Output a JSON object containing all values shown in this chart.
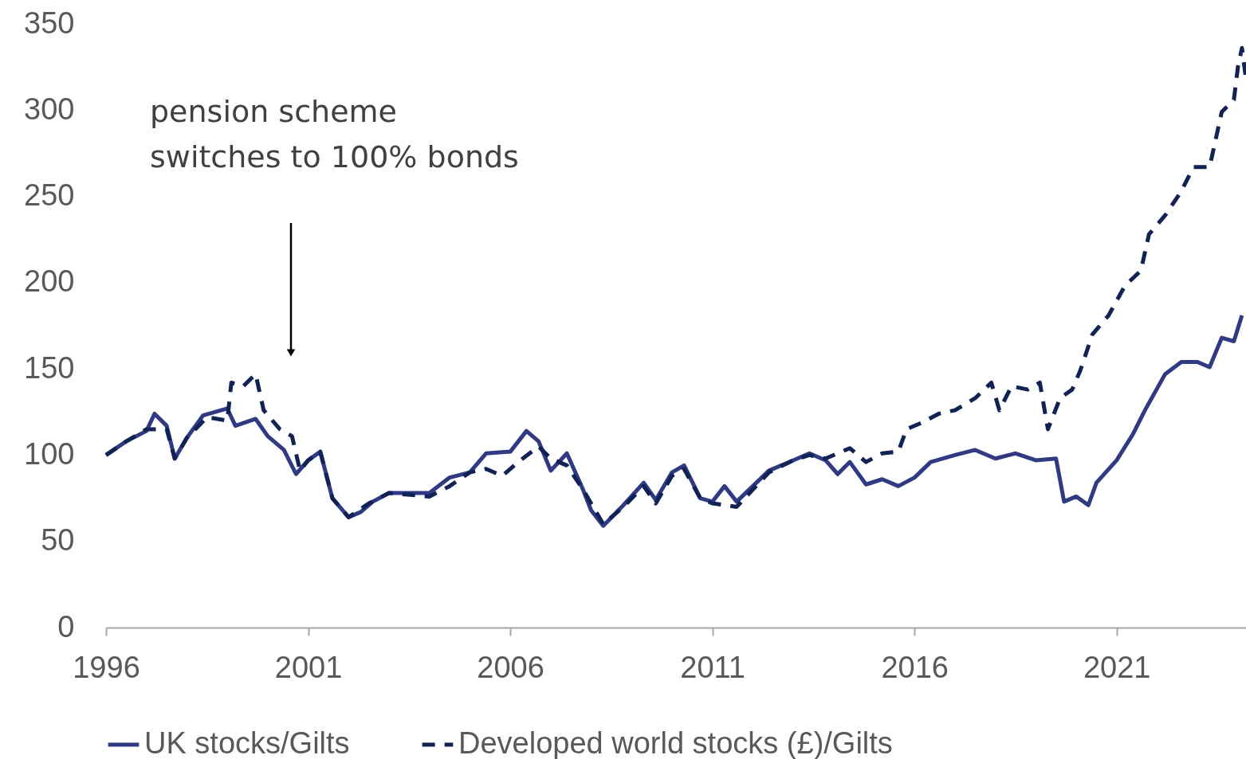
{
  "chart_data": {
    "type": "line",
    "xlim": [
      1996,
      2024.2
    ],
    "xticks": [
      1996,
      2001,
      2006,
      2011,
      2016,
      2021
    ],
    "ylim": [
      0,
      350
    ],
    "yticks": [
      0,
      50,
      100,
      150,
      200,
      250,
      300,
      350
    ],
    "grid": false,
    "legend": "bottom",
    "marker": "none",
    "annotations": [
      "pension scheme switches to 100% bonds"
    ],
    "series": [
      {
        "name": "UK stocks/Gilts",
        "color": "#2e3a87",
        "line_style": "solid",
        "x": [
          1996.0,
          1996.5,
          1997.0,
          1997.2,
          1997.5,
          1997.7,
          1998.0,
          1998.4,
          1999.0,
          1999.2,
          1999.7,
          2000.0,
          2000.4,
          2000.7,
          2001.0,
          2001.3,
          2001.6,
          2002.0,
          2002.3,
          2002.6,
          2003.0,
          2004.0,
          2004.5,
          2005.0,
          2005.4,
          2006.0,
          2006.4,
          2006.7,
          2007.0,
          2007.4,
          2007.8,
          2008.0,
          2008.3,
          2008.8,
          2009.3,
          2009.6,
          2010.0,
          2010.3,
          2010.7,
          2011.0,
          2011.3,
          2011.6,
          2012.0,
          2012.4,
          2013.0,
          2013.4,
          2013.8,
          2014.1,
          2014.4,
          2014.8,
          2015.2,
          2015.6,
          2016.0,
          2016.4,
          2017.0,
          2017.5,
          2018.0,
          2018.5,
          2019.0,
          2019.5,
          2019.7,
          2020.0,
          2020.3,
          2020.5,
          2021.0,
          2021.4,
          2021.7,
          2022.2,
          2022.6,
          2023.0,
          2023.3,
          2023.6,
          2023.9,
          2024.1
        ],
        "values": [
          100,
          108,
          114,
          124,
          117,
          98,
          110,
          123,
          127,
          117,
          121,
          111,
          103,
          89,
          97,
          102,
          75,
          64,
          67,
          73,
          78,
          78,
          87,
          90,
          101,
          102,
          114,
          108,
          91,
          101,
          80,
          68,
          59,
          71,
          84,
          74,
          90,
          94,
          75,
          73,
          82,
          73,
          82,
          91,
          97,
          101,
          97,
          89,
          96,
          83,
          86,
          82,
          87,
          96,
          100,
          103,
          98,
          101,
          97,
          98,
          73,
          76,
          71,
          84,
          97,
          112,
          126,
          147,
          154,
          154,
          151,
          168,
          166,
          181
        ]
      },
      {
        "name": "Developed world stocks (£)/Gilts",
        "color": "#0f2358",
        "line_style": "dashed",
        "x": [
          1996.0,
          1996.5,
          1997.0,
          1997.5,
          1997.7,
          1998.0,
          1998.5,
          1999.0,
          1999.1,
          1999.4,
          1999.7,
          1999.9,
          2000.3,
          2000.6,
          2000.8,
          2001.0,
          2001.3,
          2001.6,
          2002.0,
          2002.5,
          2003.0,
          2004.0,
          2004.5,
          2005.0,
          2005.4,
          2005.8,
          2006.2,
          2006.7,
          2007.0,
          2007.4,
          2007.8,
          2008.3,
          2008.8,
          2009.3,
          2009.6,
          2010.0,
          2010.3,
          2010.7,
          2011.0,
          2011.6,
          2012.4,
          2013.0,
          2013.4,
          2013.8,
          2014.4,
          2014.8,
          2015.2,
          2015.6,
          2015.8,
          2016.2,
          2016.6,
          2017.0,
          2017.5,
          2017.9,
          2018.1,
          2018.4,
          2018.8,
          2019.1,
          2019.3,
          2019.6,
          2019.9,
          2020.1,
          2020.4,
          2020.8,
          2021.2,
          2021.6,
          2021.8,
          2022.2,
          2022.6,
          2022.9,
          2023.3,
          2023.6,
          2023.9,
          2024.0,
          2024.1,
          2024.2
        ],
        "values": [
          100,
          108,
          115,
          115,
          98,
          110,
          122,
          120,
          142,
          140,
          147,
          126,
          115,
          111,
          91,
          97,
          102,
          75,
          64,
          72,
          78,
          76,
          82,
          90,
          92,
          88,
          96,
          105,
          98,
          94,
          80,
          60,
          70,
          82,
          72,
          88,
          92,
          75,
          72,
          70,
          90,
          97,
          100,
          98,
          104,
          96,
          101,
          102,
          115,
          119,
          124,
          126,
          133,
          142,
          126,
          140,
          138,
          142,
          115,
          133,
          138,
          149,
          170,
          181,
          198,
          207,
          228,
          239,
          253,
          267,
          267,
          299,
          306,
          325,
          336,
          318
        ]
      }
    ]
  }
}
